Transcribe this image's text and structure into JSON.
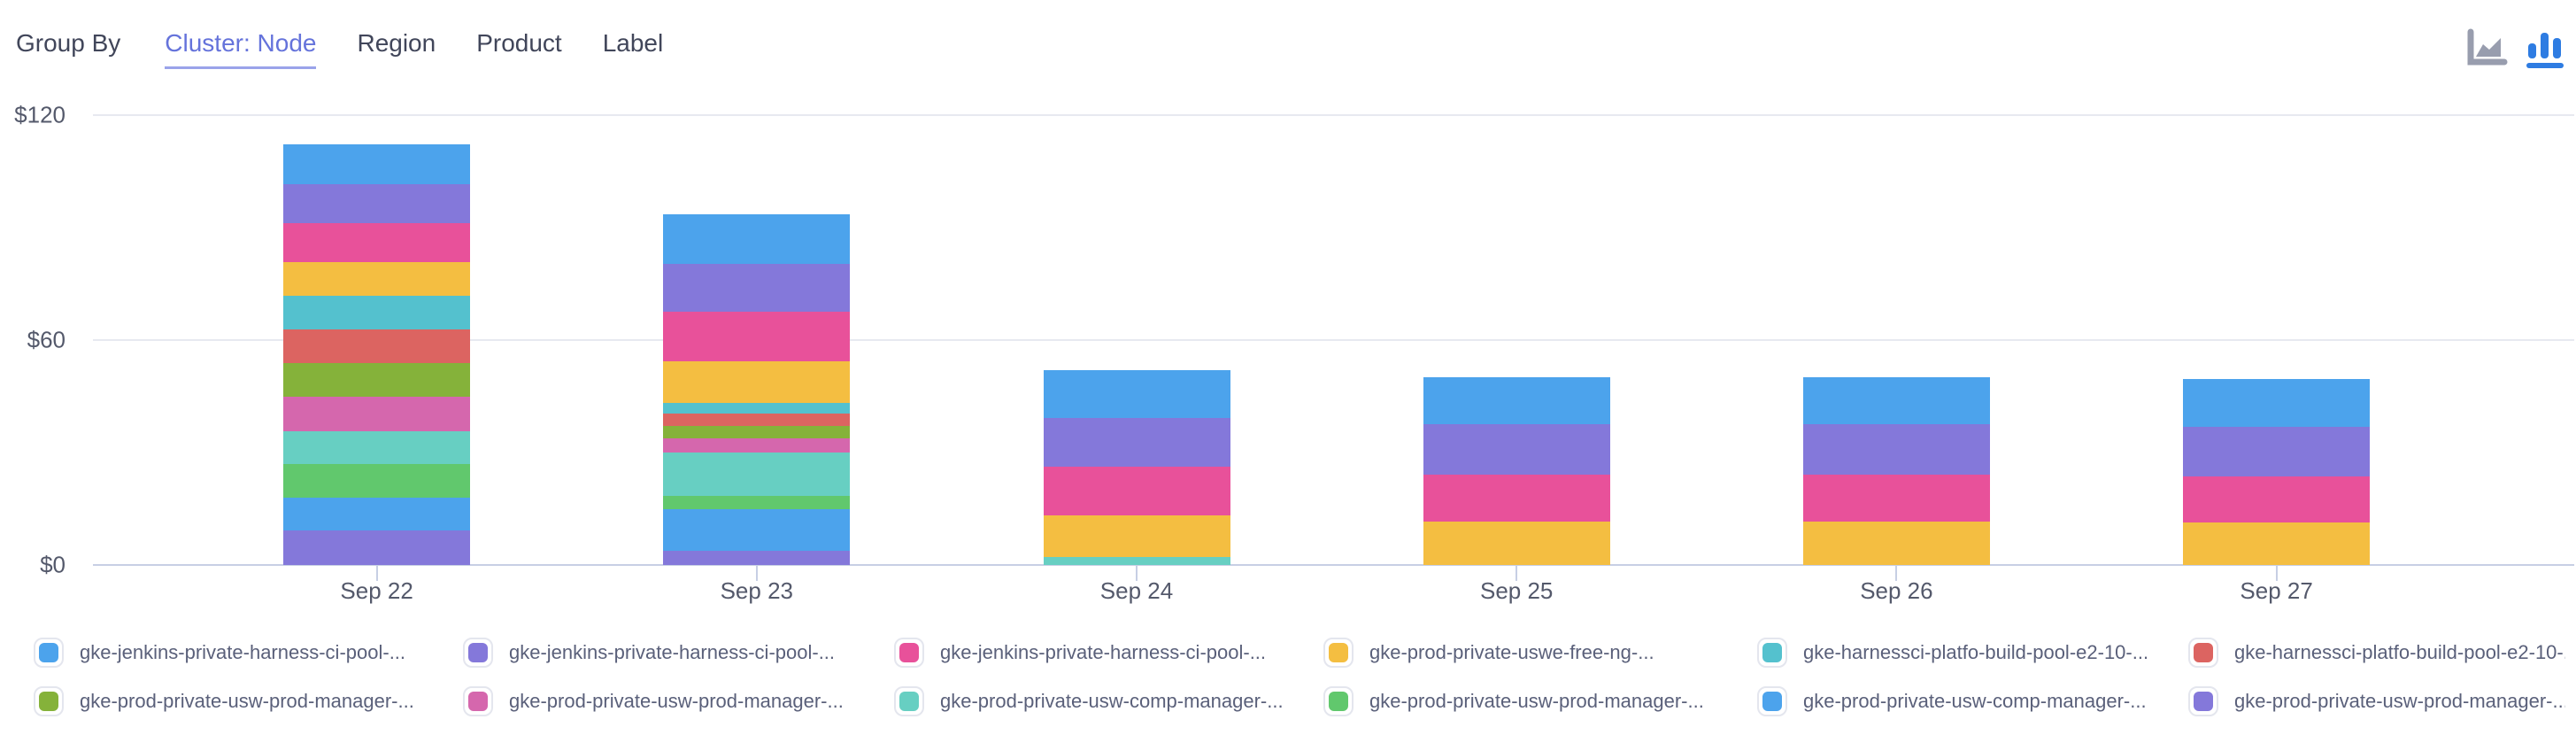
{
  "toolbar": {
    "group_by_label": "Group By",
    "options": [
      {
        "label": "Cluster: Node",
        "active": true
      },
      {
        "label": "Region",
        "active": false
      },
      {
        "label": "Product",
        "active": false
      },
      {
        "label": "Label",
        "active": false
      }
    ],
    "chart_type_icons": [
      {
        "name": "area-chart-icon",
        "selected": false,
        "color": "#989DAE"
      },
      {
        "name": "bar-chart-icon",
        "selected": true,
        "color": "#2E7CE2"
      }
    ]
  },
  "chart_data": {
    "type": "bar",
    "stacked": true,
    "grid": true,
    "legend_position": "bottom",
    "categories": [
      "Sep 22",
      "Sep 23",
      "Sep 24",
      "Sep 25",
      "Sep 26",
      "Sep 27"
    ],
    "y_axis": {
      "unit": "$",
      "ylim": [
        0,
        120
      ],
      "tick_values": [
        0,
        60,
        120
      ],
      "tick_labels": [
        "$0",
        "$60",
        "$120"
      ]
    },
    "stack_note": "series[0] is the top band of each column; the last series is the bottom band",
    "series": [
      {
        "name": "gke-jenkins-private-harness-ci-pool-...",
        "color": "#4CA3EC",
        "values": [
          10.6,
          13.2,
          12.8,
          12.5,
          12.5,
          12.8
        ]
      },
      {
        "name": "gke-jenkins-private-harness-ci-pool-...",
        "color": "#8478DA",
        "values": [
          10.4,
          12.8,
          13.0,
          13.5,
          13.5,
          13.2
        ]
      },
      {
        "name": "gke-jenkins-private-harness-ci-pool-...",
        "color": "#E8519A",
        "values": [
          10.4,
          13.2,
          13.0,
          12.5,
          12.5,
          12.3
        ]
      },
      {
        "name": "gke-prod-private-uswe-free-ng-...",
        "color": "#F4BE41",
        "values": [
          9.0,
          11.1,
          11.1,
          11.6,
          11.6,
          11.3
        ]
      },
      {
        "name": "gke-harnessci-platfo-build-pool-e2-10-...",
        "color": "#54C1CE",
        "values": [
          9.0,
          2.8,
          0,
          0,
          0,
          0
        ]
      },
      {
        "name": "gke-harnessci-platfo-build-pool-e2-10-...",
        "color": "#DC6461",
        "values": [
          9.0,
          3.3,
          0,
          0,
          0,
          0
        ]
      },
      {
        "name": "gke-prod-private-usw-prod-manager-...",
        "color": "#85B23A",
        "values": [
          9.0,
          3.3,
          0,
          0,
          0,
          0
        ]
      },
      {
        "name": "gke-prod-private-usw-prod-manager-...",
        "color": "#D567AD",
        "values": [
          9.2,
          3.8,
          0,
          0,
          0,
          0
        ]
      },
      {
        "name": "gke-prod-private-usw-comp-manager-...",
        "color": "#67CFC2",
        "values": [
          8.7,
          11.6,
          2.1,
          0,
          0,
          0
        ]
      },
      {
        "name": "gke-prod-private-usw-prod-manager-...",
        "color": "#61C86D",
        "values": [
          9.0,
          3.5,
          0,
          0,
          0,
          0
        ]
      },
      {
        "name": "gke-prod-private-usw-comp-manager-...",
        "color": "#4CA3EC",
        "values": [
          8.7,
          11.1,
          0,
          0,
          0,
          0
        ]
      },
      {
        "name": "gke-prod-private-usw-prod-manager-...",
        "color": "#8478DA",
        "values": [
          9.2,
          3.8,
          0,
          0,
          0,
          0
        ]
      }
    ]
  }
}
